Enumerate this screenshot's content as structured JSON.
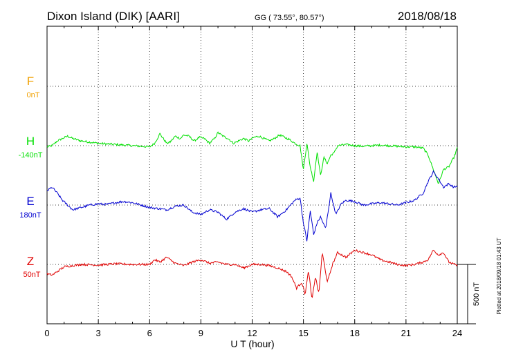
{
  "header": {
    "station": "Dixon Island (DIK)  [AARI]",
    "coords": "GG ( 73.55°,  80.57°)",
    "date": "2018/08/18"
  },
  "footer": {
    "plotted": "Plotted at 2018/09/18 01:43 UT"
  },
  "colors": {
    "F": "#f0a000",
    "H": "#00e000",
    "E": "#0000d0",
    "Z": "#e00000",
    "axis": "#000000"
  },
  "chart_data": {
    "type": "line",
    "xlabel": "U T (hour)",
    "xlim": [
      0,
      24
    ],
    "x_ticks": [
      "0",
      "3",
      "6",
      "9",
      "12",
      "15",
      "18",
      "21",
      "24"
    ],
    "scale_bar_label": "500 nT",
    "series": [
      {
        "name": "F",
        "offset_label": "0nT",
        "x": [],
        "values": []
      },
      {
        "name": "H",
        "offset_label": "-140nT",
        "x": [
          0,
          0.3,
          0.6,
          0.9,
          1.2,
          1.5,
          2.0,
          2.5,
          3.0,
          3.5,
          4.0,
          4.5,
          5.0,
          5.5,
          6.0,
          6.3,
          6.6,
          6.8,
          7.0,
          7.2,
          7.5,
          7.8,
          8.0,
          8.3,
          8.6,
          8.9,
          9.2,
          9.5,
          9.8,
          10.0,
          10.3,
          10.6,
          10.9,
          11.2,
          11.5,
          11.8,
          12.1,
          12.4,
          12.7,
          13.0,
          13.3,
          13.6,
          13.9,
          14.2,
          14.5,
          14.8,
          15.0,
          15.2,
          15.4,
          15.6,
          15.8,
          16.0,
          16.2,
          16.4,
          16.6,
          16.8,
          17.0,
          17.5,
          18.0,
          18.5,
          19.0,
          19.5,
          20.0,
          20.5,
          21.0,
          21.5,
          22.0,
          22.3,
          22.6,
          22.9,
          23.2,
          23.5,
          23.8,
          24.0
        ],
        "values": [
          -10,
          0,
          40,
          60,
          80,
          60,
          40,
          30,
          20,
          15,
          10,
          5,
          0,
          -5,
          -10,
          20,
          100,
          60,
          20,
          30,
          80,
          60,
          90,
          80,
          40,
          70,
          60,
          20,
          60,
          110,
          80,
          60,
          20,
          40,
          60,
          40,
          70,
          80,
          60,
          40,
          60,
          90,
          70,
          50,
          20,
          0,
          -200,
          20,
          -180,
          -300,
          -50,
          -250,
          -100,
          -150,
          -80,
          -60,
          0,
          10,
          0,
          -5,
          0,
          5,
          0,
          -5,
          -10,
          -10,
          -20,
          -80,
          -200,
          -320,
          -200,
          -180,
          -100,
          -20
        ]
      },
      {
        "name": "E",
        "offset_label": "180nT",
        "x": [
          0,
          0.3,
          0.6,
          0.9,
          1.2,
          1.5,
          2.0,
          2.5,
          3.0,
          3.5,
          4.0,
          4.5,
          5.0,
          5.5,
          6.0,
          6.5,
          7.0,
          7.5,
          8.0,
          8.5,
          9.0,
          9.5,
          10.0,
          10.5,
          11.0,
          11.5,
          12.0,
          12.5,
          13.0,
          13.5,
          14.0,
          14.5,
          14.8,
          15.0,
          15.2,
          15.4,
          15.6,
          15.8,
          16.0,
          16.3,
          16.6,
          16.9,
          17.2,
          17.5,
          18.0,
          18.5,
          19.0,
          19.5,
          20.0,
          20.5,
          21.0,
          21.5,
          22.0,
          22.3,
          22.6,
          22.9,
          23.2,
          23.5,
          23.8,
          24.0
        ],
        "values": [
          120,
          150,
          100,
          40,
          0,
          -40,
          -20,
          0,
          10,
          5,
          20,
          30,
          20,
          0,
          -20,
          -30,
          -40,
          -10,
          0,
          -60,
          -80,
          -40,
          -60,
          -120,
          -60,
          -30,
          -60,
          -40,
          -30,
          -100,
          -40,
          40,
          60,
          -150,
          -300,
          -50,
          -250,
          -150,
          -100,
          -200,
          100,
          -80,
          10,
          40,
          30,
          0,
          10,
          20,
          10,
          0,
          20,
          40,
          100,
          200,
          280,
          220,
          150,
          180,
          150,
          160
        ]
      },
      {
        "name": "Z",
        "offset_label": "50nT",
        "x": [
          0,
          0.3,
          0.6,
          1.0,
          1.5,
          2.0,
          3.0,
          4.0,
          5.0,
          6.0,
          6.3,
          6.6,
          7.0,
          7.5,
          8.0,
          8.5,
          9.0,
          9.5,
          10.0,
          10.5,
          11.0,
          11.5,
          12.0,
          12.5,
          13.0,
          13.5,
          14.0,
          14.3,
          14.6,
          14.9,
          15.1,
          15.3,
          15.5,
          15.7,
          15.9,
          16.1,
          16.4,
          16.7,
          17.0,
          17.5,
          18.0,
          18.5,
          19.0,
          19.5,
          20.0,
          20.5,
          21.0,
          21.5,
          22.0,
          22.3,
          22.6,
          22.9,
          23.2,
          23.5,
          24.0
        ],
        "values": [
          -80,
          -90,
          -60,
          -20,
          -10,
          0,
          -5,
          5,
          0,
          0,
          40,
          20,
          60,
          10,
          -10,
          20,
          40,
          10,
          20,
          0,
          0,
          -30,
          0,
          0,
          -10,
          -30,
          -60,
          -100,
          -200,
          -150,
          -250,
          -50,
          -300,
          -100,
          -250,
          100,
          -150,
          0,
          100,
          60,
          120,
          100,
          80,
          40,
          20,
          0,
          -10,
          0,
          20,
          40,
          120,
          80,
          100,
          20,
          -10
        ]
      }
    ]
  }
}
